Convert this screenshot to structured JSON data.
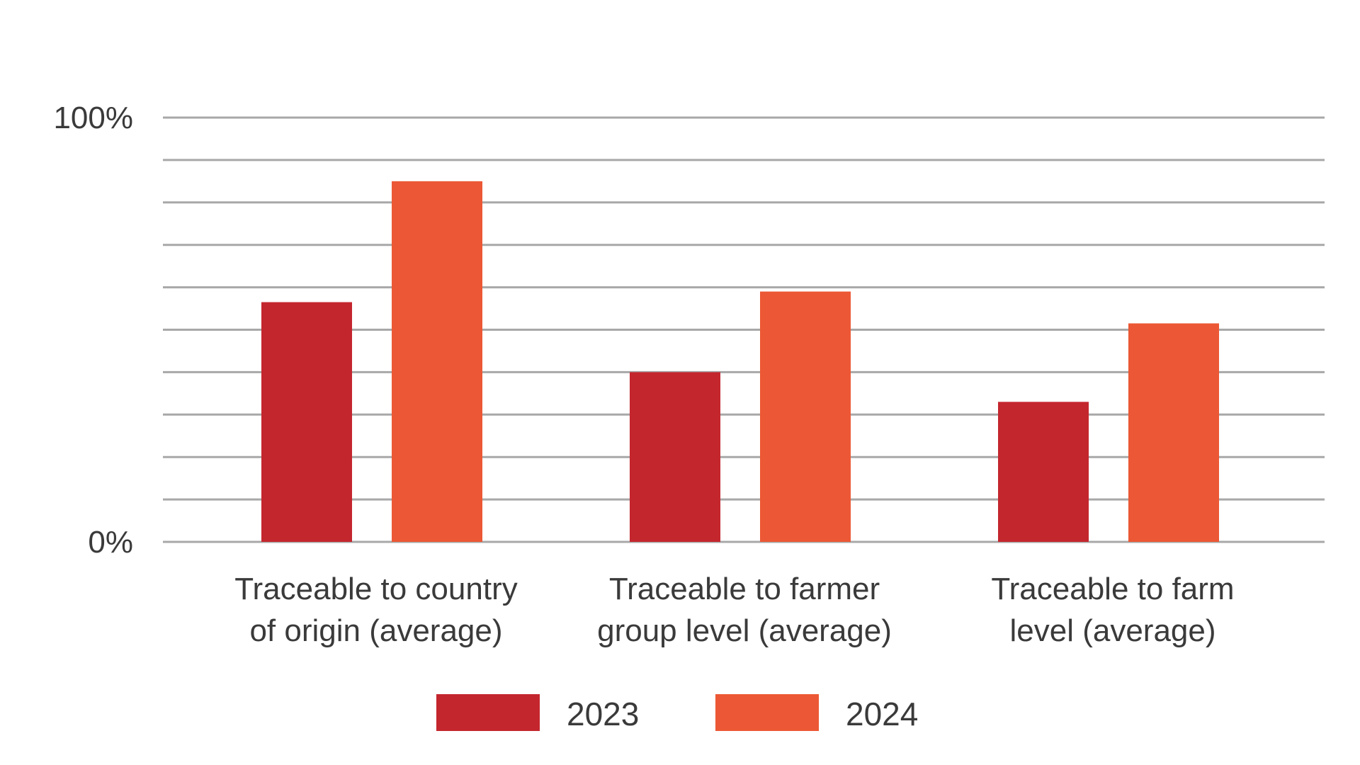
{
  "chart_data": {
    "type": "bar",
    "title": "",
    "xlabel": "",
    "ylabel": "",
    "ylim": [
      0,
      100
    ],
    "y_ticks": [
      {
        "value": 100,
        "label": "100%"
      },
      {
        "value": 0,
        "label": "0%"
      }
    ],
    "gridlines": [
      0,
      10,
      20,
      30,
      40,
      50,
      60,
      70,
      80,
      90,
      100
    ],
    "categories": [
      [
        "Traceable to country",
        "of origin (average)"
      ],
      [
        "Traceable to farmer",
        "group level (average)"
      ],
      [
        "Traceable to farm",
        "level (average)"
      ]
    ],
    "series": [
      {
        "name": "2023",
        "color": "#c4262e",
        "values": [
          56.5,
          40,
          33
        ]
      },
      {
        "name": "2024",
        "color": "#ec5835",
        "values": [
          85,
          59,
          51.5
        ]
      }
    ],
    "legend": "bottom"
  }
}
